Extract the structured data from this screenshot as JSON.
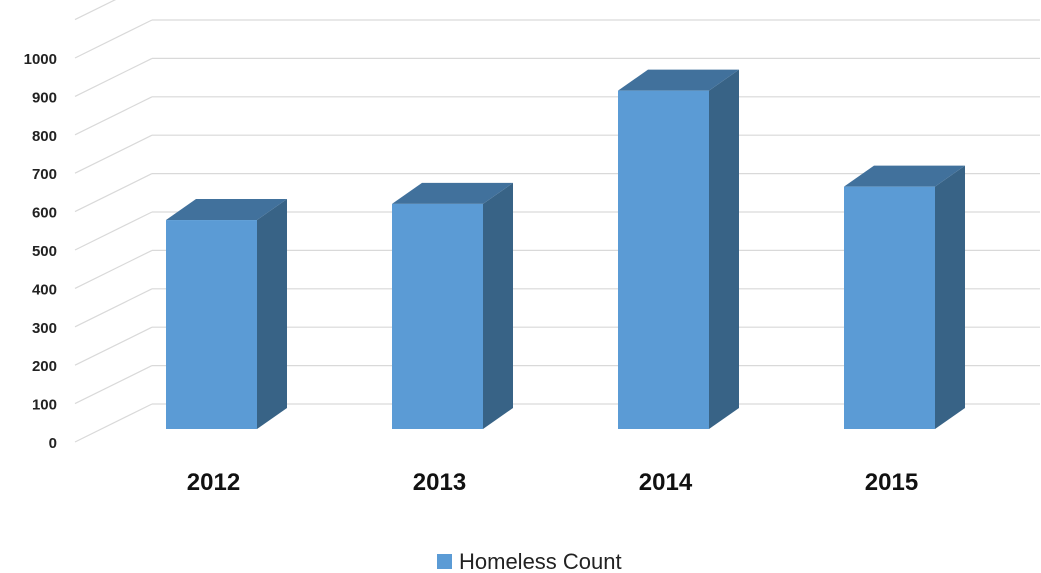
{
  "chart_data": {
    "type": "bar",
    "style": "3d-column",
    "categories": [
      "2012",
      "2013",
      "2014",
      "2015"
    ],
    "series": [
      {
        "name": "Homeless Count",
        "values": [
          578,
          620,
          915,
          665
        ]
      }
    ],
    "title": "",
    "xlabel": "",
    "ylabel": "",
    "ylim": [
      0,
      1000
    ],
    "yticks": [
      0,
      100,
      200,
      300,
      400,
      500,
      600,
      700,
      800,
      900,
      1000
    ],
    "grid": true,
    "legend": "bottom-center",
    "colors": {
      "front": "#5b9bd5",
      "top": "#41719c",
      "side": "#386386",
      "grid": "#d9d9d9"
    }
  }
}
